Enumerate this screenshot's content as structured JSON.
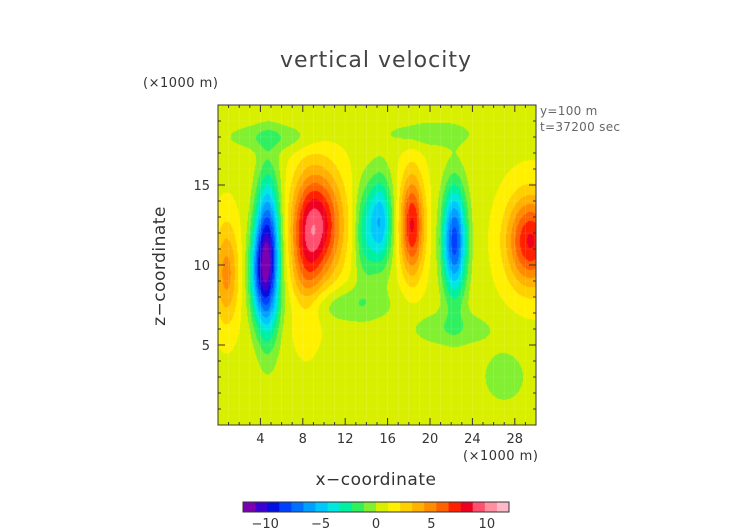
{
  "chart_data": {
    "type": "heatmap",
    "title": "vertical velocity",
    "xlabel": "x−coordinate",
    "ylabel": "z−coordinate",
    "x_unit": "(×1000 m)",
    "y_unit": "(×1000 m)",
    "annotations": [
      "y=100 m",
      "t=37200 sec"
    ],
    "xlim": [
      0,
      30
    ],
    "ylim": [
      0,
      20
    ],
    "x_ticks": [
      4,
      8,
      12,
      16,
      20,
      24,
      28
    ],
    "y_ticks": [
      5,
      10,
      15
    ],
    "colorbar": {
      "range": [
        -12,
        12
      ],
      "ticks": [
        -10,
        -5,
        0,
        5,
        10
      ],
      "tick_labels": [
        "−10",
        "−5",
        "0",
        "5",
        "10"
      ],
      "colors": [
        "#7a00b0",
        "#3c00d0",
        "#0010e0",
        "#0040ff",
        "#0070ff",
        "#00a0ff",
        "#00c8ff",
        "#00e8e0",
        "#00f0a0",
        "#30f060",
        "#80f030",
        "#d8f000",
        "#fff000",
        "#ffd000",
        "#ffb000",
        "#ff8c00",
        "#ff6000",
        "#ff2000",
        "#f00020",
        "#ff5070",
        "#ff90a0",
        "#ffb8c8"
      ]
    },
    "background_value": 0.8,
    "cells": [
      {
        "x": 4.7,
        "z": 10.5,
        "sx": 0.8,
        "sz": 3.2,
        "v": -11.0
      },
      {
        "x": 3.8,
        "z": 9.5,
        "sx": 0.7,
        "sz": 2.0,
        "v": -4.0
      },
      {
        "x": 9.5,
        "z": 12.5,
        "sx": 1.6,
        "sz": 2.4,
        "v": 7.5
      },
      {
        "x": 8.3,
        "z": 10.5,
        "sx": 1.0,
        "sz": 3.0,
        "v": 3.0
      },
      {
        "x": 15.3,
        "z": 12.7,
        "sx": 0.8,
        "sz": 2.0,
        "v": -6.0
      },
      {
        "x": 13.8,
        "z": 12.0,
        "sx": 0.7,
        "sz": 2.2,
        "v": -3.0
      },
      {
        "x": 18.3,
        "z": 12.5,
        "sx": 0.8,
        "sz": 2.2,
        "v": 7.0
      },
      {
        "x": 22.3,
        "z": 11.5,
        "sx": 0.8,
        "sz": 2.4,
        "v": -9.0
      },
      {
        "x": 29.5,
        "z": 11.5,
        "sx": 1.6,
        "sz": 2.0,
        "v": 7.0
      },
      {
        "x": 0.8,
        "z": 9.5,
        "sx": 0.8,
        "sz": 2.2,
        "v": 4.0
      },
      {
        "x": 12.0,
        "z": 7.5,
        "sx": 3.0,
        "sz": 0.8,
        "v": -1.8
      },
      {
        "x": 22.0,
        "z": 6.0,
        "sx": 3.0,
        "sz": 0.8,
        "v": -1.6
      },
      {
        "x": 5.0,
        "z": 18.0,
        "sx": 3.0,
        "sz": 0.6,
        "v": -1.8
      },
      {
        "x": 20.0,
        "z": 18.2,
        "sx": 3.0,
        "sz": 0.6,
        "v": -1.6
      },
      {
        "x": 27.0,
        "z": 3.0,
        "sx": 1.5,
        "sz": 1.2,
        "v": -1.6
      }
    ]
  }
}
